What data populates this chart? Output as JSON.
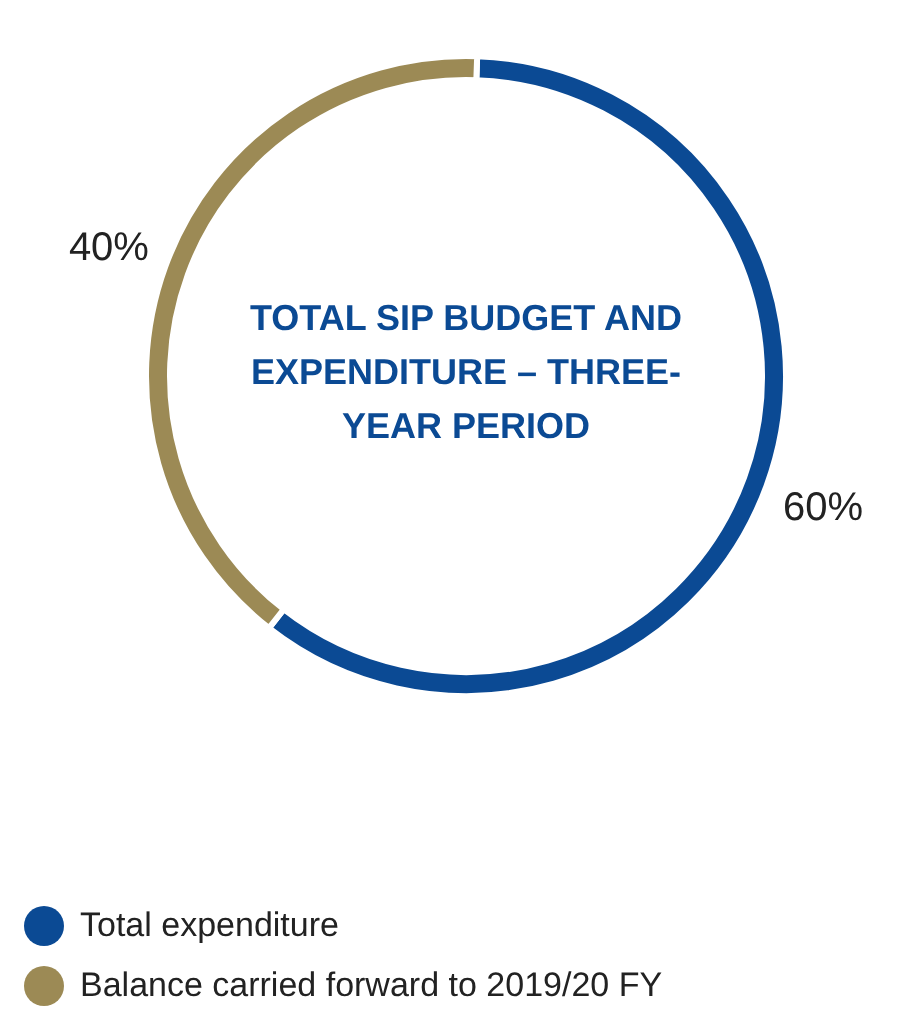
{
  "chart_data": {
    "type": "donut",
    "title": "TOTAL SIP BUDGET AND EXPENDITURE – THREE-YEAR PERIOD",
    "categories": [
      "Total expenditure",
      "Balance carried forward to 2019/20 FY"
    ],
    "values": [
      60,
      40
    ],
    "value_labels": [
      "60%",
      "40%"
    ],
    "colors": [
      "#0b4a94",
      "#9c8a55"
    ],
    "legend": "bottom left"
  }
}
